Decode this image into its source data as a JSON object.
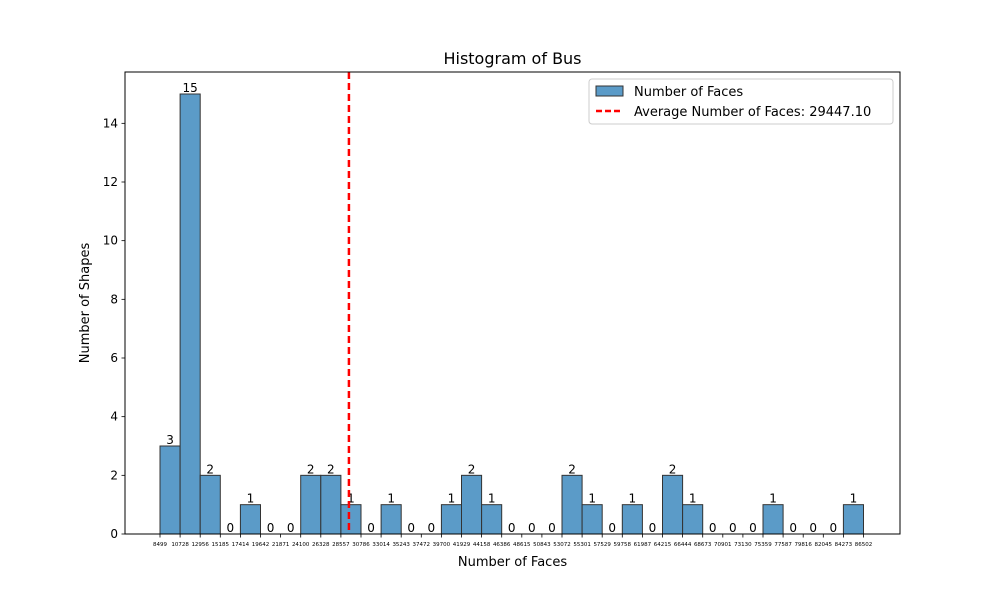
{
  "chart_data": {
    "type": "bar",
    "title": "Histogram of Bus",
    "xlabel": "Number of Faces",
    "ylabel": "Number of Shapes",
    "ylim": [
      0,
      15.75
    ],
    "yticks": [
      0,
      2,
      4,
      6,
      8,
      10,
      12,
      14
    ],
    "grid": false,
    "legend_position": "top-right",
    "bar_color": "#5b9bc8",
    "bar_edge_color": "#333333",
    "mean_line_color": "#ff0000",
    "bin_edge_labels": [
      "8499",
      "10728",
      "12956",
      "15185",
      "17414",
      "19642",
      "21871",
      "24100",
      "26328",
      "28557",
      "30786",
      "33014",
      "35243",
      "37472",
      "39700",
      "41929",
      "44158",
      "46386",
      "48615",
      "50843",
      "53072",
      "55301",
      "57529",
      "59758",
      "61987",
      "64215",
      "66444",
      "68673",
      "70901",
      "73130",
      "75359",
      "77587",
      "79816",
      "82045",
      "84273",
      "86502"
    ],
    "counts": [
      3,
      15,
      2,
      0,
      1,
      0,
      0,
      2,
      2,
      1,
      0,
      1,
      0,
      0,
      1,
      2,
      1,
      0,
      0,
      0,
      2,
      1,
      0,
      1,
      0,
      2,
      1,
      0,
      0,
      0,
      1,
      0,
      0,
      0,
      1
    ],
    "mean": 29447.1,
    "x_min": 8499,
    "x_max": 86502,
    "series": [
      {
        "name": "Number of Faces",
        "kind": "bars"
      },
      {
        "name": "Average Number of Faces: 29447.10",
        "kind": "dashed-line"
      }
    ]
  }
}
